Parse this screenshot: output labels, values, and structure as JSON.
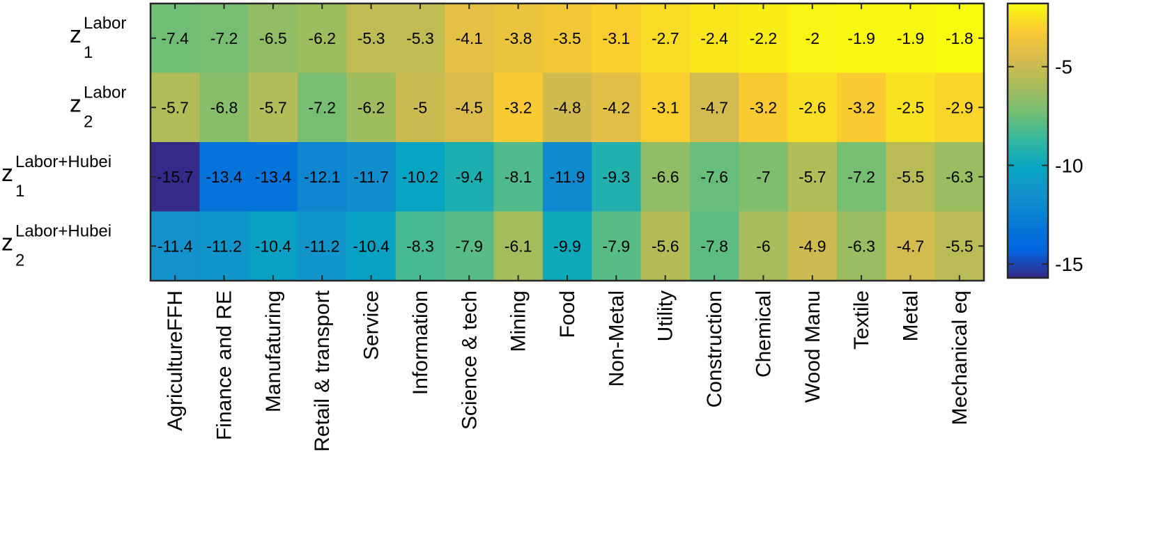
{
  "chart_data": {
    "type": "heatmap",
    "title": "",
    "xlabel": "",
    "ylabel": "",
    "categories": [
      "AgricultureFFH",
      "Finance and RE",
      "Manufaturing",
      "Retail & transport",
      "Service",
      "Information",
      "Science & tech",
      "Mining",
      "Food",
      "Non-Metal",
      "Utility",
      "Construction",
      "Chemical",
      "Wood Manu",
      "Textile",
      "Metal",
      "Mechanical eq"
    ],
    "rows": [
      {
        "base": "z",
        "superscript": "Labor",
        "subscript": "1"
      },
      {
        "base": "z",
        "superscript": "Labor",
        "subscript": "2"
      },
      {
        "base": "z",
        "superscript": "Labor+Hubei",
        "subscript": "1"
      },
      {
        "base": "z",
        "superscript": "Labor+Hubei",
        "subscript": "2"
      }
    ],
    "values": [
      [
        -7.4,
        -7.2,
        -6.5,
        -6.2,
        -5.3,
        -5.3,
        -4.1,
        -3.8,
        -3.5,
        -3.1,
        -2.7,
        -2.4,
        -2.2,
        -2,
        -1.9,
        -1.9,
        -1.8
      ],
      [
        -5.7,
        -6.8,
        -5.7,
        -7.2,
        -6.2,
        -5,
        -4.5,
        -3.2,
        -4.8,
        -4.2,
        -3.1,
        -4.7,
        -3.2,
        -2.6,
        -3.2,
        -2.5,
        -2.9
      ],
      [
        -15.7,
        -13.4,
        -13.4,
        -12.1,
        -11.7,
        -10.2,
        -9.4,
        -8.1,
        -11.9,
        -9.3,
        -6.6,
        -7.6,
        -7,
        -5.7,
        -7.2,
        -5.5,
        -6.3
      ],
      [
        -11.4,
        -11.2,
        -10.4,
        -11.2,
        -10.4,
        -8.3,
        -7.9,
        -6.1,
        -9.9,
        -7.9,
        -5.6,
        -7.8,
        -6,
        -4.9,
        -6.3,
        -4.7,
        -5.5
      ]
    ],
    "value_labels": [
      [
        "-7.4",
        "-7.2",
        "-6.5",
        "-6.2",
        "-5.3",
        "-5.3",
        "-4.1",
        "-3.8",
        "-3.5",
        "-3.1",
        "-2.7",
        "-2.4",
        "-2.2",
        "-2",
        "-1.9",
        "-1.9",
        "-1.8"
      ],
      [
        "-5.7",
        "-6.8",
        "-5.7",
        "-7.2",
        "-6.2",
        "-5",
        "-4.5",
        "-3.2",
        "-4.8",
        "-4.2",
        "-3.1",
        "-4.7",
        "-3.2",
        "-2.6",
        "-3.2",
        "-2.5",
        "-2.9"
      ],
      [
        "-15.7",
        "-13.4",
        "-13.4",
        "-12.1",
        "-11.7",
        "-10.2",
        "-9.4",
        "-8.1",
        "-11.9",
        "-9.3",
        "-6.6",
        "-7.6",
        "-7",
        "-5.7",
        "-7.2",
        "-5.5",
        "-6.3"
      ],
      [
        "-11.4",
        "-11.2",
        "-10.4",
        "-11.2",
        "-10.4",
        "-8.3",
        "-7.9",
        "-6.1",
        "-9.9",
        "-7.9",
        "-5.6",
        "-7.8",
        "-6",
        "-4.9",
        "-6.3",
        "-4.7",
        "-5.5"
      ]
    ],
    "colorbar": {
      "colormap": "parula",
      "range": [
        -15.7,
        -1.8
      ],
      "ticks": [
        -15,
        -10,
        -5
      ],
      "tick_labels": [
        "-15",
        "-10",
        "-5"
      ],
      "placement": "right"
    },
    "grid": false,
    "legend": "none"
  }
}
